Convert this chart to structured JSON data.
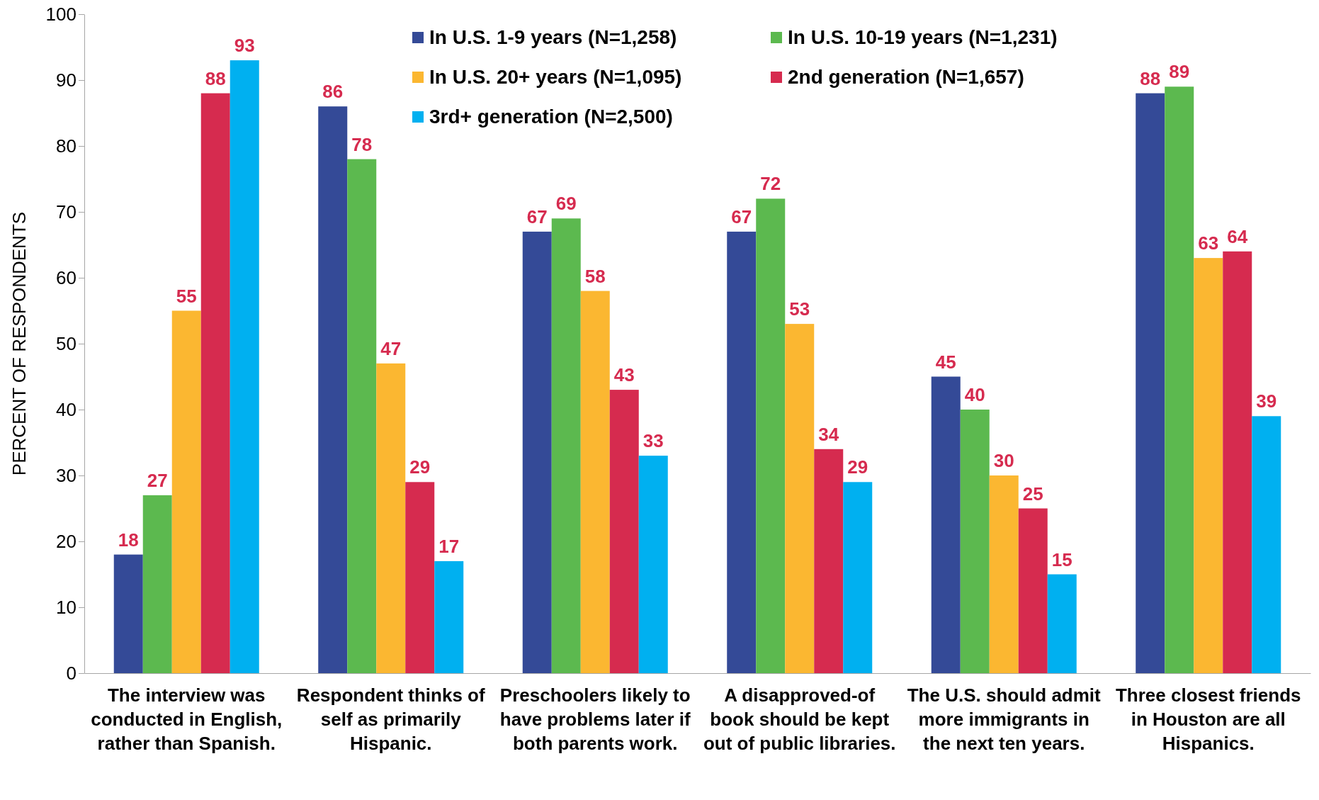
{
  "chart_data": {
    "type": "bar",
    "ylabel": "PERCENT OF RESPONDENTS",
    "categories": [
      "The interview was conducted in English, rather than Spanish.",
      "Respondent thinks of self as primarily Hispanic.",
      "Preschoolers likely to have problems later if both parents work.",
      "A disapproved-of book should be kept out of public libraries.",
      "The U.S. should admit more immigrants in the next ten years.",
      "Three closest friends in Houston are all Hispanics."
    ],
    "series": [
      {
        "name": "In U.S. 1-9 years (N=1,258)",
        "color": "#344a97",
        "values": [
          18,
          86,
          67,
          67,
          45,
          88
        ]
      },
      {
        "name": "In U.S. 10-19 years (N=1,231)",
        "color": "#5cb94f",
        "values": [
          27,
          78,
          69,
          72,
          40,
          89
        ]
      },
      {
        "name": "In U.S. 20+ years (N=1,095)",
        "color": "#fbb731",
        "values": [
          55,
          47,
          58,
          53,
          30,
          63
        ]
      },
      {
        "name": "2nd generation (N=1,657)",
        "color": "#d62b4f",
        "values": [
          88,
          29,
          43,
          34,
          25,
          64
        ]
      },
      {
        "name": "3rd+ generation (N=2,500)",
        "color": "#00b0f0",
        "values": [
          93,
          17,
          33,
          29,
          15,
          39
        ]
      }
    ],
    "ylim": [
      0,
      100
    ],
    "yticks": [
      0,
      10,
      20,
      30,
      40,
      50,
      60,
      70,
      80,
      90,
      100
    ],
    "data_labels": true,
    "grid": false,
    "legend": "top"
  }
}
